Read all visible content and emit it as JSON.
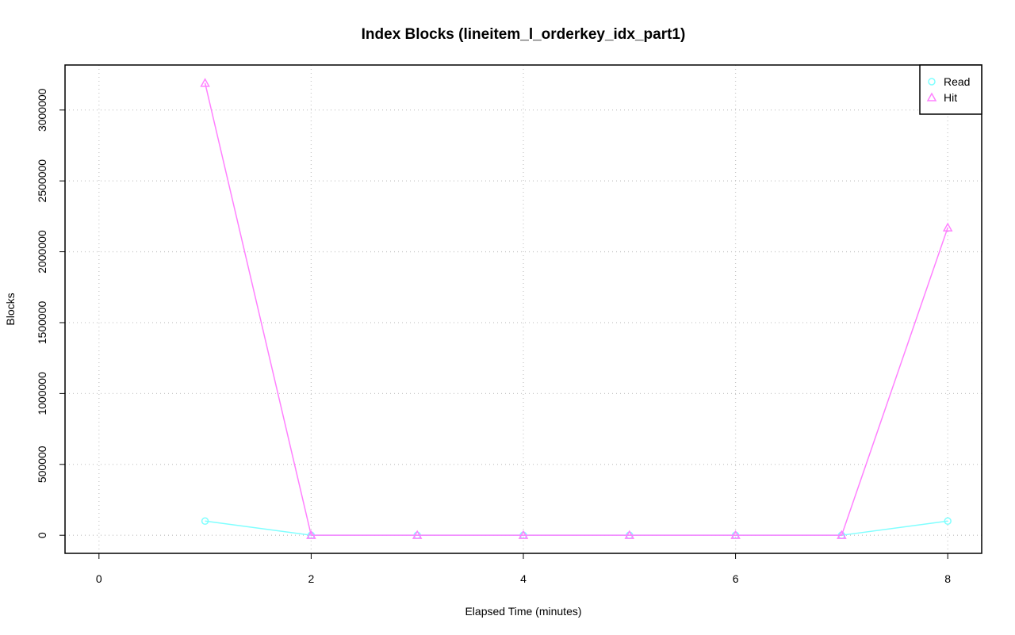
{
  "chart_data": {
    "type": "line",
    "title": "Index Blocks (lineitem_l_orderkey_idx_part1)",
    "x_label": "Elapsed Time (minutes)",
    "y_label": "Blocks",
    "x": [
      1,
      2,
      3,
      4,
      5,
      6,
      7,
      8
    ],
    "series": [
      {
        "name": "Read",
        "color": "#80ffff",
        "marker": "circle",
        "values": [
          100000,
          0,
          0,
          0,
          0,
          0,
          0,
          100000
        ]
      },
      {
        "name": "Hit",
        "color": "#ff80ff",
        "marker": "triangle",
        "values": [
          3190000,
          0,
          0,
          0,
          0,
          0,
          0,
          2170000
        ]
      }
    ],
    "xlim": [
      -0.32,
      8.32
    ],
    "xticks": [
      0,
      2,
      4,
      6,
      8
    ],
    "ylim": [
      -127600,
      3317600
    ],
    "yticks": [
      0,
      500000,
      1000000,
      1500000,
      2000000,
      2500000,
      3000000
    ],
    "grid": true,
    "legend": "top-right"
  }
}
